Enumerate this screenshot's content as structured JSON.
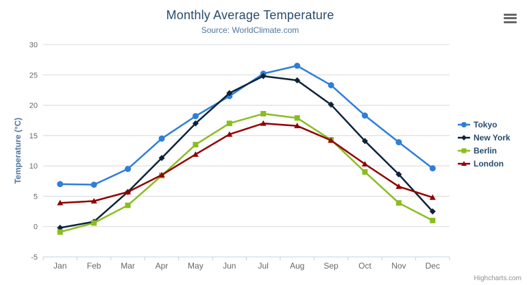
{
  "header": {
    "title": "Monthly Average Temperature",
    "subtitle": "Source: WorldClimate.com"
  },
  "credits": {
    "label": "Highcharts.com"
  },
  "chart_data": {
    "type": "line",
    "title": "Monthly Average Temperature",
    "subtitle": "Source: WorldClimate.com",
    "categories": [
      "Jan",
      "Feb",
      "Mar",
      "Apr",
      "May",
      "Jun",
      "Jul",
      "Aug",
      "Sep",
      "Oct",
      "Nov",
      "Dec"
    ],
    "series": [
      {
        "name": "Tokyo",
        "color": "#2f7ed8",
        "marker": "circle",
        "values": [
          7.0,
          6.9,
          9.5,
          14.5,
          18.2,
          21.5,
          25.2,
          26.5,
          23.3,
          18.3,
          13.9,
          9.6
        ]
      },
      {
        "name": "New York",
        "color": "#0d233a",
        "marker": "diamond",
        "values": [
          -0.2,
          0.8,
          5.7,
          11.3,
          17.0,
          22.0,
          24.8,
          24.1,
          20.1,
          14.1,
          8.6,
          2.5
        ]
      },
      {
        "name": "Berlin",
        "color": "#8bbc21",
        "marker": "square",
        "values": [
          -0.9,
          0.6,
          3.5,
          8.4,
          13.5,
          17.0,
          18.6,
          17.9,
          14.3,
          9.0,
          3.9,
          1.0
        ]
      },
      {
        "name": "London",
        "color": "#910000",
        "marker": "triangle",
        "values": [
          3.9,
          4.2,
          5.7,
          8.5,
          11.9,
          15.2,
          17.0,
          16.6,
          14.2,
          10.3,
          6.6,
          4.8
        ]
      }
    ],
    "xlabel": "",
    "ylabel": "Temperature (°C)",
    "ylim": [
      -5,
      30
    ],
    "yticks": [
      -5,
      0,
      5,
      10,
      15,
      20,
      25,
      30
    ],
    "tick_interval": 5,
    "grid": true,
    "legend_position": "right",
    "colors": {
      "grid": "#d8d8d8",
      "axis_line": "#c0d0e0",
      "tick_label": "#666666",
      "axis_title": "#4d759e",
      "title": "#274b6d",
      "subtitle": "#4d759e",
      "legend_text": "#274b6d",
      "credits": "#909090"
    }
  }
}
